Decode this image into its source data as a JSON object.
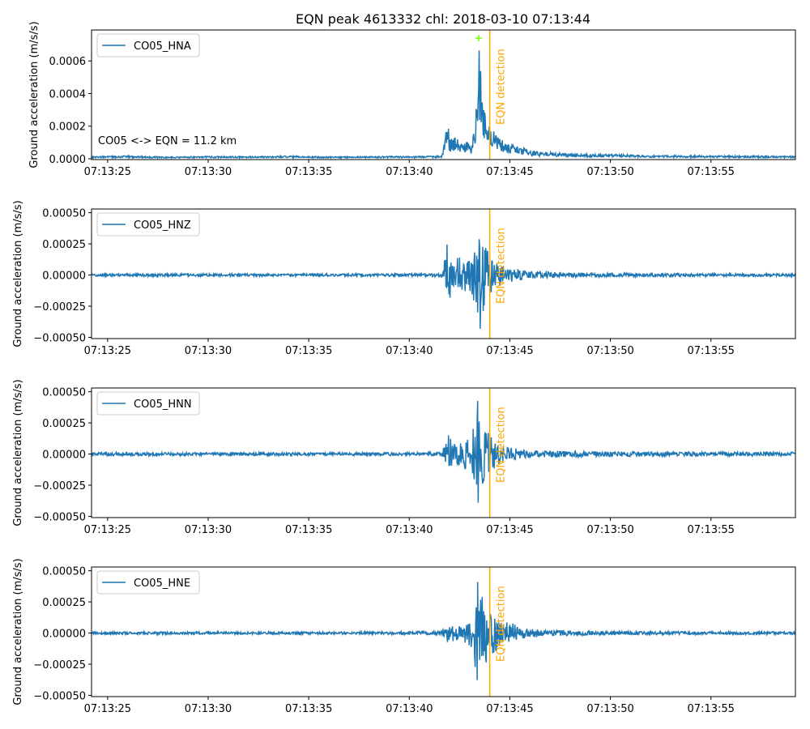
{
  "chart_data": {
    "title": "EQN peak 4613332 chl: 2018-03-10 07:13:44",
    "type": "line",
    "x_unit": "seconds after 07:13:00",
    "xlim": [
      24.2,
      59.2
    ],
    "x_ticks": [
      {
        "value": 25,
        "label": "07:13:25"
      },
      {
        "value": 30,
        "label": "07:13:30"
      },
      {
        "value": 35,
        "label": "07:13:35"
      },
      {
        "value": 40,
        "label": "07:13:40"
      },
      {
        "value": 45,
        "label": "07:13:45"
      },
      {
        "value": 50,
        "label": "07:13:50"
      },
      {
        "value": 55,
        "label": "07:13:55"
      }
    ],
    "detection": {
      "x": 44.0,
      "label": "EQN detection",
      "color": "#ffa500"
    },
    "line_color": "#1f77b4",
    "panels": [
      {
        "series_name": "CO05_HNA",
        "ylabel": "Ground acceleration (m/s/s)",
        "ylim": [
          -5e-06,
          0.00079
        ],
        "y_ticks": [
          {
            "value": 0.0,
            "label": "0.0000"
          },
          {
            "value": 0.0002,
            "label": "0.0002"
          },
          {
            "value": 0.0004,
            "label": "0.0004"
          },
          {
            "value": 0.0006,
            "label": "0.0006"
          }
        ],
        "note": "CO05 <-> EQN = 11.2 km",
        "peak": {
          "x": 43.45,
          "y": 0.00074,
          "color": "#7cfc00"
        },
        "envelope": true,
        "points": [
          [
            24.2,
            1.5e-05
          ],
          [
            26.0,
            1.8e-05
          ],
          [
            28.0,
            1.2e-05
          ],
          [
            30.0,
            1.6e-05
          ],
          [
            32.0,
            1.4e-05
          ],
          [
            34.0,
            1.7e-05
          ],
          [
            36.0,
            1.3e-05
          ],
          [
            38.0,
            1.5e-05
          ],
          [
            40.0,
            1.6e-05
          ],
          [
            41.6,
            1.8e-05
          ],
          [
            41.8,
            0.00018
          ],
          [
            41.9,
            0.00031
          ],
          [
            42.0,
            0.00012
          ],
          [
            42.3,
            0.00014
          ],
          [
            42.6,
            9e-05
          ],
          [
            42.9,
            0.00011
          ],
          [
            43.1,
            6e-05
          ],
          [
            43.3,
            0.00028
          ],
          [
            43.45,
            0.00074
          ],
          [
            43.6,
            0.00045
          ],
          [
            43.8,
            0.00026
          ],
          [
            44.1,
            0.00018
          ],
          [
            44.5,
            0.00013
          ],
          [
            45.0,
            9e-05
          ],
          [
            45.5,
            8e-05
          ],
          [
            46.0,
            5e-05
          ],
          [
            47.0,
            4e-05
          ],
          [
            48.0,
            3e-05
          ],
          [
            50.0,
            3e-05
          ],
          [
            52.0,
            2e-05
          ],
          [
            54.0,
            2e-05
          ],
          [
            56.0,
            1.8e-05
          ],
          [
            58.0,
            1.7e-05
          ],
          [
            59.2,
            1.6e-05
          ]
        ]
      },
      {
        "series_name": "CO05_HNZ",
        "ylabel": "Ground acceleration (m/s/s)",
        "ylim": [
          -0.00051,
          0.00053
        ],
        "y_ticks": [
          {
            "value": -0.0005,
            "label": "−0.00050"
          },
          {
            "value": -0.00025,
            "label": "−0.00025"
          },
          {
            "value": 0.0,
            "label": "0.00000"
          },
          {
            "value": 0.00025,
            "label": "0.00025"
          },
          {
            "value": 0.0005,
            "label": "0.00050"
          }
        ],
        "envelope": false,
        "points": [
          [
            24.2,
            1e-05
          ],
          [
            26.0,
            1e-05
          ],
          [
            28.0,
            1.2e-05
          ],
          [
            30.0,
            1e-05
          ],
          [
            32.0,
            1e-05
          ],
          [
            34.0,
            1e-05
          ],
          [
            36.0,
            1e-05
          ],
          [
            38.0,
            1.2e-05
          ],
          [
            40.0,
            1e-05
          ],
          [
            41.6,
            1.5e-05
          ],
          [
            41.8,
            0.00017
          ],
          [
            41.9,
            0.00027
          ],
          [
            42.2,
            0.00012
          ],
          [
            42.6,
            0.00016
          ],
          [
            43.0,
            0.00012
          ],
          [
            43.4,
            0.00032
          ],
          [
            43.55,
            0.00047
          ],
          [
            43.8,
            0.00025
          ],
          [
            44.1,
            0.00015
          ],
          [
            44.6,
            8e-05
          ],
          [
            45.0,
            6e-05
          ],
          [
            46.0,
            3e-05
          ],
          [
            48.0,
            2e-05
          ],
          [
            50.0,
            1.5e-05
          ],
          [
            54.0,
            1.2e-05
          ],
          [
            59.2,
            1e-05
          ]
        ]
      },
      {
        "series_name": "CO05_HNN",
        "ylabel": "Ground acceleration (m/s/s)",
        "ylim": [
          -0.00051,
          0.00053
        ],
        "y_ticks": [
          {
            "value": -0.0005,
            "label": "−0.00050"
          },
          {
            "value": -0.00025,
            "label": "−0.00025"
          },
          {
            "value": 0.0,
            "label": "0.00000"
          },
          {
            "value": 0.00025,
            "label": "0.00025"
          },
          {
            "value": 0.0005,
            "label": "0.00050"
          }
        ],
        "envelope": false,
        "points": [
          [
            24.2,
            1.2e-05
          ],
          [
            26.0,
            1.5e-05
          ],
          [
            28.0,
            1.2e-05
          ],
          [
            30.0,
            1.2e-05
          ],
          [
            32.0,
            1.2e-05
          ],
          [
            34.0,
            1.2e-05
          ],
          [
            36.0,
            1.2e-05
          ],
          [
            38.0,
            1.2e-05
          ],
          [
            40.0,
            1.2e-05
          ],
          [
            41.6,
            1.5e-05
          ],
          [
            41.8,
            0.0001
          ],
          [
            41.95,
            0.00015
          ],
          [
            42.3,
            8e-05
          ],
          [
            42.7,
            0.00012
          ],
          [
            43.1,
            0.00015
          ],
          [
            43.45,
            0.00048
          ],
          [
            43.6,
            0.00032
          ],
          [
            43.9,
            0.0002
          ],
          [
            44.3,
            0.0001
          ],
          [
            44.8,
            7e-05
          ],
          [
            45.5,
            4e-05
          ],
          [
            46.5,
            3e-05
          ],
          [
            48.0,
            2.5e-05
          ],
          [
            50.0,
            2e-05
          ],
          [
            54.0,
            1.8e-05
          ],
          [
            59.2,
            1.5e-05
          ]
        ]
      },
      {
        "series_name": "CO05_HNE",
        "ylabel": "Ground acceleration (m/s/s)",
        "ylim": [
          -0.00051,
          0.00053
        ],
        "y_ticks": [
          {
            "value": -0.0005,
            "label": "−0.00050"
          },
          {
            "value": -0.00025,
            "label": "−0.00025"
          },
          {
            "value": 0.0,
            "label": "0.00000"
          },
          {
            "value": 0.00025,
            "label": "0.00025"
          },
          {
            "value": 0.0005,
            "label": "0.00050"
          }
        ],
        "envelope": false,
        "points": [
          [
            24.2,
            1e-05
          ],
          [
            26.0,
            1e-05
          ],
          [
            28.0,
            1e-05
          ],
          [
            30.0,
            1e-05
          ],
          [
            32.0,
            1e-05
          ],
          [
            34.0,
            1e-05
          ],
          [
            36.0,
            1e-05
          ],
          [
            38.0,
            1e-05
          ],
          [
            40.0,
            1.2e-05
          ],
          [
            41.6,
            1.5e-05
          ],
          [
            41.8,
            6e-05
          ],
          [
            42.0,
            9e-05
          ],
          [
            42.4,
            6e-05
          ],
          [
            42.8,
            8e-05
          ],
          [
            43.1,
            0.00012
          ],
          [
            43.4,
            0.00045
          ],
          [
            43.6,
            0.00036
          ],
          [
            43.8,
            0.00025
          ],
          [
            44.2,
            0.00016
          ],
          [
            44.6,
            0.0001
          ],
          [
            45.0,
            9e-05
          ],
          [
            45.5,
            5e-05
          ],
          [
            46.5,
            3e-05
          ],
          [
            48.0,
            2e-05
          ],
          [
            50.0,
            1.5e-05
          ],
          [
            54.0,
            1.2e-05
          ],
          [
            59.2,
            1e-05
          ]
        ]
      }
    ]
  }
}
